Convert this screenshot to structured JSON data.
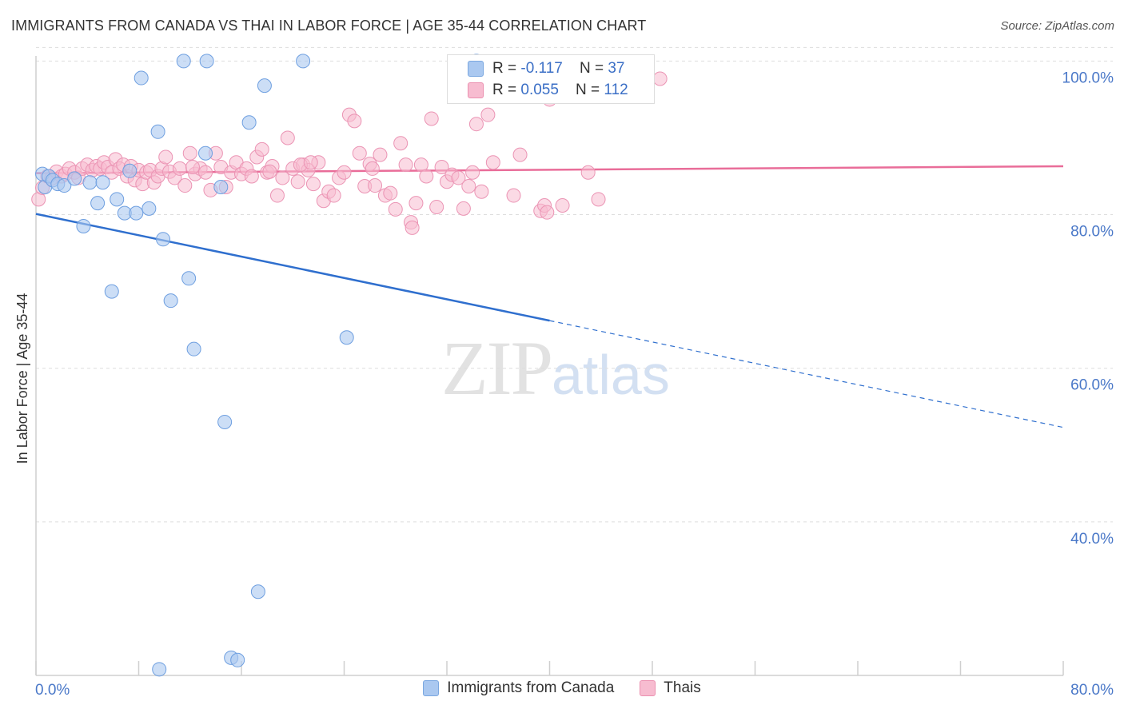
{
  "header": {
    "title": "IMMIGRANTS FROM CANADA VS THAI IN LABOR FORCE | AGE 35-44 CORRELATION CHART",
    "source": "Source: ZipAtlas.com"
  },
  "watermark": {
    "zip": "ZIP",
    "atlas": "atlas"
  },
  "stats": {
    "row1": {
      "r_label": "R = ",
      "r_value": "-0.117",
      "n_label": "N = ",
      "n_value": "37"
    },
    "row2": {
      "r_label": "R = ",
      "r_value": "0.055",
      "n_label": "N = ",
      "n_value": "112"
    }
  },
  "legend": {
    "series1": "Immigrants from Canada",
    "series2": "Thais"
  },
  "colors": {
    "blue_fill": "#aac8f0",
    "blue_stroke": "#6e9fe0",
    "blue_line": "#2f6fce",
    "pink_fill": "#f7bcd0",
    "pink_stroke": "#eb94b4",
    "pink_line": "#e96d99",
    "tick_label": "#4a78c8",
    "grid": "#dddddd"
  },
  "chart_data": {
    "type": "scatter",
    "title": "IMMIGRANTS FROM CANADA VS THAI IN LABOR FORCE | AGE 35-44 CORRELATION CHART",
    "xlabel": "",
    "ylabel": "In Labor Force | Age 35-44",
    "xlim": [
      0,
      80
    ],
    "ylim": [
      20,
      101.5
    ],
    "x_tick_labels": [
      "0.0%",
      "80.0%"
    ],
    "y_ticks": [
      40,
      60,
      80,
      100
    ],
    "y_tick_labels": [
      "40.0%",
      "60.0%",
      "80.0%",
      "100.0%"
    ],
    "grid": "horizontal dashed",
    "series": [
      {
        "name": "Immigrants from Canada",
        "color": "#aac8f0",
        "points": [
          [
            0.5,
            85.3
          ],
          [
            0.7,
            83.6
          ],
          [
            1.0,
            85.0
          ],
          [
            1.3,
            84.5
          ],
          [
            1.7,
            84.0
          ],
          [
            2.2,
            83.8
          ],
          [
            3.0,
            84.7
          ],
          [
            3.7,
            78.5
          ],
          [
            4.2,
            84.2
          ],
          [
            4.8,
            81.5
          ],
          [
            5.2,
            84.2
          ],
          [
            5.9,
            70.0
          ],
          [
            6.3,
            82.0
          ],
          [
            6.9,
            80.2
          ],
          [
            7.3,
            85.7
          ],
          [
            7.8,
            80.2
          ],
          [
            8.2,
            97.8
          ],
          [
            8.8,
            80.8
          ],
          [
            9.5,
            90.8
          ],
          [
            9.9,
            76.8
          ],
          [
            10.5,
            68.8
          ],
          [
            11.5,
            100.0
          ],
          [
            11.9,
            71.7
          ],
          [
            12.3,
            62.5
          ],
          [
            13.2,
            88.0
          ],
          [
            13.3,
            100.0
          ],
          [
            14.4,
            83.6
          ],
          [
            14.7,
            53.0
          ],
          [
            15.2,
            22.3
          ],
          [
            15.7,
            22.0
          ],
          [
            16.6,
            92.0
          ],
          [
            17.3,
            30.9
          ],
          [
            17.8,
            96.8
          ],
          [
            20.8,
            100.0
          ],
          [
            24.2,
            64.0
          ],
          [
            34.3,
            100.0
          ],
          [
            9.6,
            20.8
          ]
        ],
        "trend": {
          "x0": 0,
          "y0": 80.1,
          "x1": 40,
          "y1": 66.2,
          "dash_to_x": 80,
          "dash_to_y": 52.3
        }
      },
      {
        "name": "Thais",
        "color": "#f7bcd0",
        "points": [
          [
            0.2,
            82.0
          ],
          [
            0.5,
            83.5
          ],
          [
            0.9,
            85.0
          ],
          [
            1.2,
            84.7
          ],
          [
            1.6,
            85.6
          ],
          [
            2.0,
            85.0
          ],
          [
            2.3,
            85.3
          ],
          [
            2.6,
            86.0
          ],
          [
            3.0,
            85.5
          ],
          [
            3.3,
            84.8
          ],
          [
            3.6,
            86.0
          ],
          [
            4.0,
            86.5
          ],
          [
            4.4,
            85.8
          ],
          [
            4.7,
            86.3
          ],
          [
            5.0,
            86.0
          ],
          [
            5.3,
            86.8
          ],
          [
            5.6,
            86.2
          ],
          [
            5.9,
            85.5
          ],
          [
            6.2,
            87.2
          ],
          [
            6.5,
            86.0
          ],
          [
            6.8,
            86.5
          ],
          [
            7.1,
            85.0
          ],
          [
            7.4,
            86.3
          ],
          [
            7.7,
            84.5
          ],
          [
            8.0,
            85.8
          ],
          [
            8.3,
            84.0
          ],
          [
            8.6,
            85.5
          ],
          [
            8.9,
            85.8
          ],
          [
            9.2,
            84.2
          ],
          [
            9.5,
            85.0
          ],
          [
            9.8,
            86.0
          ],
          [
            10.1,
            87.5
          ],
          [
            10.4,
            85.6
          ],
          [
            10.8,
            84.8
          ],
          [
            11.2,
            86.0
          ],
          [
            11.6,
            83.8
          ],
          [
            12.0,
            88.0
          ],
          [
            12.4,
            85.3
          ],
          [
            12.8,
            86.0
          ],
          [
            13.2,
            85.5
          ],
          [
            13.6,
            83.2
          ],
          [
            14.0,
            88.0
          ],
          [
            14.4,
            86.2
          ],
          [
            14.8,
            83.6
          ],
          [
            15.2,
            85.5
          ],
          [
            15.6,
            86.8
          ],
          [
            16.0,
            85.3
          ],
          [
            16.4,
            86.0
          ],
          [
            16.8,
            85.0
          ],
          [
            17.2,
            87.5
          ],
          [
            17.6,
            88.5
          ],
          [
            18.0,
            85.5
          ],
          [
            18.4,
            86.3
          ],
          [
            18.8,
            82.5
          ],
          [
            19.2,
            84.8
          ],
          [
            19.6,
            90.0
          ],
          [
            20.0,
            86.0
          ],
          [
            20.4,
            84.3
          ],
          [
            20.8,
            86.5
          ],
          [
            21.2,
            85.8
          ],
          [
            21.6,
            84.0
          ],
          [
            22.0,
            86.8
          ],
          [
            22.4,
            81.8
          ],
          [
            22.8,
            83.0
          ],
          [
            23.2,
            82.5
          ],
          [
            23.6,
            84.8
          ],
          [
            24.0,
            85.5
          ],
          [
            24.4,
            93.0
          ],
          [
            24.8,
            92.2
          ],
          [
            25.2,
            88.0
          ],
          [
            25.6,
            83.7
          ],
          [
            26.0,
            86.6
          ],
          [
            26.4,
            83.8
          ],
          [
            26.8,
            87.8
          ],
          [
            27.2,
            82.5
          ],
          [
            27.6,
            82.8
          ],
          [
            28.0,
            80.7
          ],
          [
            28.4,
            89.3
          ],
          [
            28.8,
            86.5
          ],
          [
            29.2,
            79.0
          ],
          [
            29.6,
            81.5
          ],
          [
            30.0,
            86.5
          ],
          [
            30.4,
            85.0
          ],
          [
            30.8,
            92.5
          ],
          [
            31.2,
            81.0
          ],
          [
            31.6,
            86.2
          ],
          [
            32.0,
            84.3
          ],
          [
            32.4,
            85.2
          ],
          [
            32.9,
            84.8
          ],
          [
            33.3,
            80.8
          ],
          [
            33.7,
            83.7
          ],
          [
            34.0,
            85.5
          ],
          [
            34.3,
            91.8
          ],
          [
            34.7,
            83.0
          ],
          [
            35.2,
            93.0
          ],
          [
            35.6,
            86.8
          ],
          [
            37.2,
            82.5
          ],
          [
            37.7,
            87.8
          ],
          [
            39.3,
            80.5
          ],
          [
            39.6,
            81.2
          ],
          [
            39.8,
            80.3
          ],
          [
            40.0,
            95.0
          ],
          [
            41.0,
            81.2
          ],
          [
            43.0,
            85.5
          ],
          [
            43.8,
            82.0
          ],
          [
            48.6,
            97.7
          ],
          [
            29.3,
            78.3
          ],
          [
            18.2,
            85.6
          ],
          [
            20.6,
            86.5
          ],
          [
            21.4,
            86.8
          ],
          [
            26.2,
            86.0
          ],
          [
            12.2,
            86.2
          ]
        ],
        "trend": {
          "x0": 0,
          "y0": 85.4,
          "x1": 80,
          "y1": 86.3
        }
      }
    ]
  }
}
